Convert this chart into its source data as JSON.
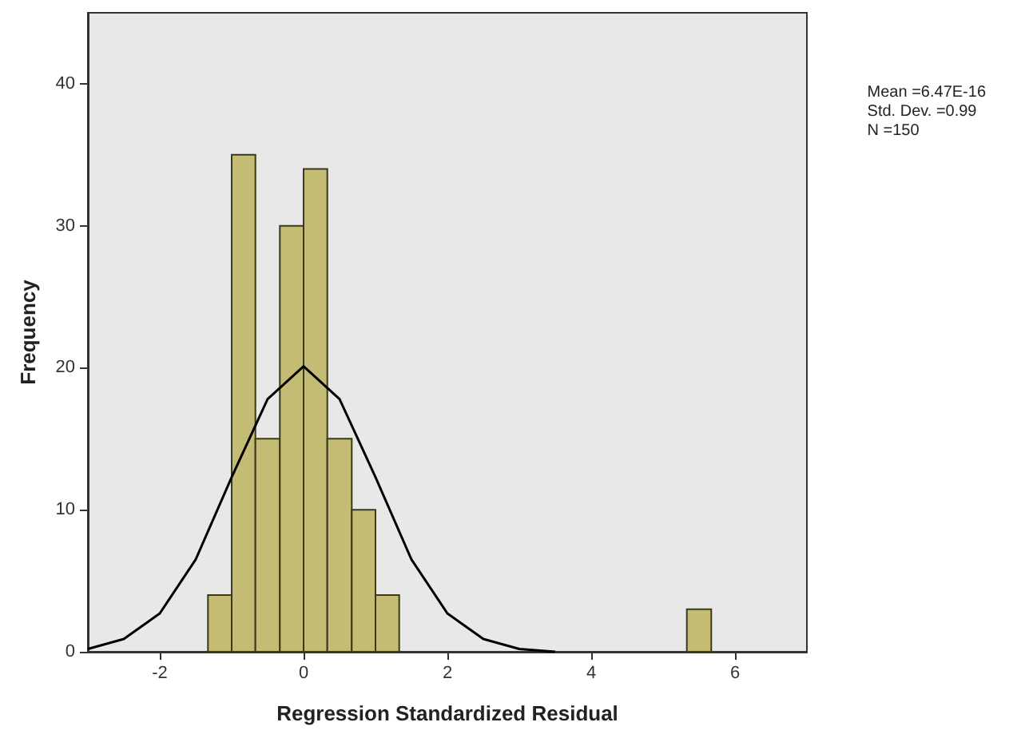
{
  "chart_data": {
    "type": "histogram",
    "xlabel": "Regression Standardized Residual",
    "ylabel": "Frequency",
    "bins": [
      -1.33,
      -1,
      -0.67,
      -0.33,
      0,
      0.33,
      0.67,
      1,
      1.33,
      5.33,
      5.67
    ],
    "values": [
      4,
      35,
      15,
      30,
      34,
      15,
      10,
      4,
      0,
      3
    ],
    "color": "#c4bb74",
    "series": [
      {
        "type": "line",
        "color": "#000000",
        "x": [
          -3,
          -2.5,
          -2,
          -1.5,
          -1,
          -0.5,
          0,
          0.5,
          1,
          1.5,
          2,
          2.5,
          3,
          3.5
        ],
        "values": [
          0.2,
          0.9,
          2.7,
          6.5,
          12.3,
          17.8,
          20.1,
          17.8,
          12.3,
          6.5,
          2.7,
          0.9,
          0.2,
          0
        ]
      }
    ],
    "xlim": [
      -3,
      7
    ],
    "xticks": [
      -2,
      0,
      2,
      4,
      6
    ],
    "ylim": [
      0,
      45
    ],
    "yticks": [
      0,
      10,
      20,
      30,
      40
    ],
    "annotations": [
      "Mean =6.47E-16\nStd. Dev. =0.99\nN =150"
    ],
    "grid": false,
    "marker": "none",
    "line_style": "solid"
  }
}
